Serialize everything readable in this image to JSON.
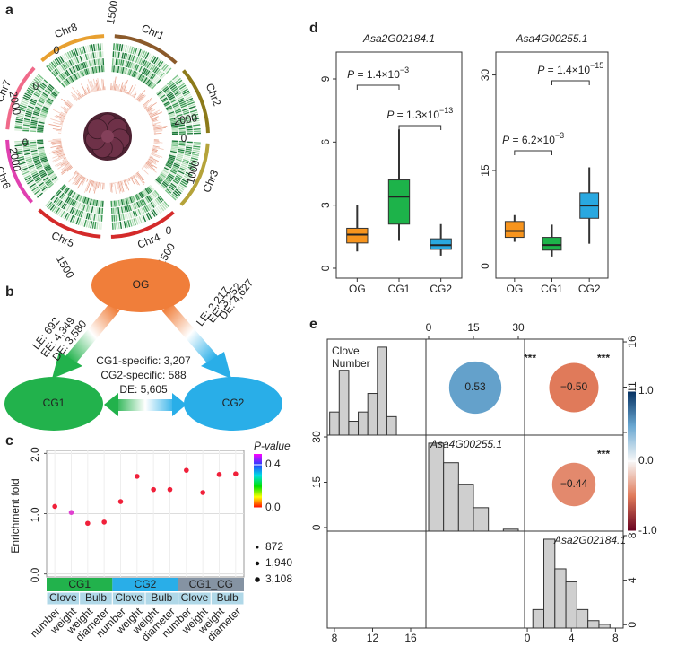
{
  "panel_labels": [
    "a",
    "b",
    "c",
    "d",
    "e"
  ],
  "circos": {
    "chromosomes": [
      "Chr1",
      "Chr2",
      "Chr3",
      "Chr4",
      "Chr5",
      "Chr6",
      "Chr7",
      "Chr8"
    ],
    "colors": [
      "#8b5a2b",
      "#8c7a1a",
      "#b5a33a",
      "#d42a2a",
      "#d42a2a",
      "#e040b0",
      "#f06a8a",
      "#e8a030"
    ],
    "tick_labels": [
      "0",
      "1500",
      "2000",
      "0",
      "1000",
      "0",
      "1500",
      "0",
      "1500",
      "0",
      "2000",
      "0",
      "2000"
    ]
  },
  "network": {
    "nodes": [
      "OG",
      "CG1",
      "CG2"
    ],
    "og_cg1": [
      "LE: 692",
      "EE: 4,349",
      "DE: 3,580"
    ],
    "og_cg2": [
      "LE: 2,217",
      "EE: 3,252",
      "DE: 4,627"
    ],
    "cg1_cg2": [
      "CG1-specific: 3,207",
      "CG2-specific: 588",
      "DE: 5,605"
    ]
  },
  "chart_data": [
    {
      "type": "dot",
      "y_label": "Enrichment fold",
      "categories": [
        "number",
        "weight",
        "weight",
        "diameter",
        "number",
        "weight",
        "weight",
        "diameter",
        "number",
        "weight",
        "weight",
        "diameter"
      ],
      "values": [
        1.12,
        1.02,
        0.84,
        0.86,
        1.2,
        1.62,
        1.4,
        1.4,
        1.72,
        1.35,
        1.65,
        1.66
      ],
      "colors": [
        "#f0203a",
        "#e040d0",
        "#f0203a",
        "#f0203a",
        "#f0203a",
        "#f0203a",
        "#f0203a",
        "#f0203a",
        "#f0203a",
        "#f0203a",
        "#f0203a",
        "#f0203a"
      ],
      "ylim": [
        -0.05,
        2.05
      ],
      "yticks": [
        {
          "value": 0,
          "label": "0.0"
        },
        {
          "value": 1,
          "label": "1.0"
        },
        {
          "value": 2,
          "label": "2.0"
        }
      ],
      "grid": true,
      "groups": [
        "CG1",
        "CG2",
        "CG1_CG"
      ],
      "group_colors": [
        "#22b24c",
        "#29aee8",
        "#8593a3"
      ],
      "subgroups": [
        "Clove",
        "Bulb",
        "Clove",
        "Bulb",
        "Clove",
        "Bulb"
      ],
      "legend": {
        "title": "P-value",
        "colorbar_lim": [
          0,
          0.5
        ],
        "colorbar_ticks": [
          {
            "value": 0.4,
            "label": "0.4"
          },
          {
            "value": 0,
            "label": "0.0"
          }
        ],
        "sizes": [
          872,
          {
            "value": 1940,
            "label": "1,940"
          },
          {
            "value": 3108,
            "label": "3,108"
          }
        ]
      }
    },
    {
      "type": "box",
      "title": "Asa2G02184.1",
      "categories": [
        "OG",
        "CG1",
        "CG2"
      ],
      "colors": [
        "#f7941d",
        "#1db34a",
        "#29a8e0"
      ],
      "boxes": [
        {
          "min": 0.8,
          "q1": 1.2,
          "median": 1.6,
          "q3": 1.9,
          "max": 3.0
        },
        {
          "min": 1.3,
          "q1": 2.1,
          "median": 3.4,
          "q3": 4.2,
          "max": 6.6
        },
        {
          "min": 0.6,
          "q1": 0.9,
          "median": 1.1,
          "q3": 1.4,
          "max": 2.1
        }
      ],
      "ylim": [
        -0.47,
        10.28
      ],
      "yticks": [
        0,
        3,
        6,
        9
      ],
      "annotations": [
        {
          "prefix": "P",
          "text": " = 1.4×10",
          "exp": "−3"
        },
        {
          "prefix": "P",
          "text": " = 1.3×10",
          "exp": "−13"
        }
      ]
    },
    {
      "type": "box",
      "title": "Asa4G00255.1",
      "categories": [
        "OG",
        "CG1",
        "CG2"
      ],
      "colors": [
        "#f7941d",
        "#1db34a",
        "#29a8e0"
      ],
      "boxes": [
        {
          "min": 3.8,
          "q1": 4.5,
          "median": 5.5,
          "q3": 7.0,
          "max": 8.0
        },
        {
          "min": 1.5,
          "q1": 2.5,
          "median": 3.3,
          "q3": 4.5,
          "max": 6.5
        },
        {
          "min": 3.5,
          "q1": 7.5,
          "median": 9.5,
          "q3": 11.5,
          "max": 15.5
        }
      ],
      "ylim": [
        -1.9,
        33.6
      ],
      "yticks": [
        0,
        15,
        30
      ],
      "annotations": [
        {
          "prefix": "P",
          "text": " = 6.2×10",
          "exp": "−3"
        },
        {
          "prefix": "P",
          "text": " = 1.4×10",
          "exp": "−15"
        }
      ]
    },
    {
      "type": "pairs",
      "variables": [
        [
          "Clove",
          "Number"
        ],
        [
          "Asa4G00255.1"
        ],
        [
          "Asa2G02184.1"
        ]
      ],
      "histograms": [
        {
          "bins": [
            7.5,
            8.5,
            9.5,
            10.5,
            11.5,
            12.5,
            13.5,
            14.5
          ],
          "counts": [
            5,
            14,
            3,
            5,
            9,
            19,
            4
          ]
        },
        {
          "bins": [
            0,
            5,
            10,
            15,
            20,
            25,
            30
          ],
          "counts": [
            45,
            35,
            24,
            12,
            0,
            1
          ]
        },
        {
          "bins": [
            0.5,
            1.5,
            2.5,
            3.5,
            4.5,
            5.5,
            6.5,
            7.5
          ],
          "counts": [
            10,
            48,
            32,
            25,
            10,
            4,
            2
          ]
        }
      ],
      "correlations": {
        "values": [
          0.53,
          -0.5,
          -0.44
        ],
        "value_labels": [
          "0.53",
          "−0.50",
          "−0.44"
        ],
        "significance": [
          "***",
          "***",
          "***"
        ]
      },
      "axes": {
        "col1_bottom": {
          "lim": [
            7.25,
            17.6
          ],
          "ticks": [
            8,
            12,
            16
          ]
        },
        "col2_top": {
          "lim": [
            -0.9,
            32.1
          ],
          "ticks": [
            0,
            15,
            30
          ]
        },
        "col3_bottom": {
          "lim": [
            -0.25,
            8.7
          ],
          "ticks": [
            0,
            4,
            8
          ]
        },
        "row1_right": {
          "lim": [
            5.7,
            16.3
          ],
          "ticks": [
            16,
            11,
            6
          ]
        },
        "row2_left": {
          "lim": [
            -1.2,
            30.6
          ],
          "ticks": [
            30,
            15,
            0
          ]
        },
        "row3_right": {
          "lim": [
            -0.3,
            8.4
          ],
          "ticks": [
            8,
            4,
            0
          ]
        }
      },
      "colorbar": {
        "lim": [
          -1,
          1
        ],
        "ticks": [
          {
            "value": 1,
            "label": "1.0"
          },
          {
            "value": 0,
            "label": "0.0"
          },
          {
            "value": -1,
            "label": "-1.0"
          }
        ]
      }
    }
  ]
}
